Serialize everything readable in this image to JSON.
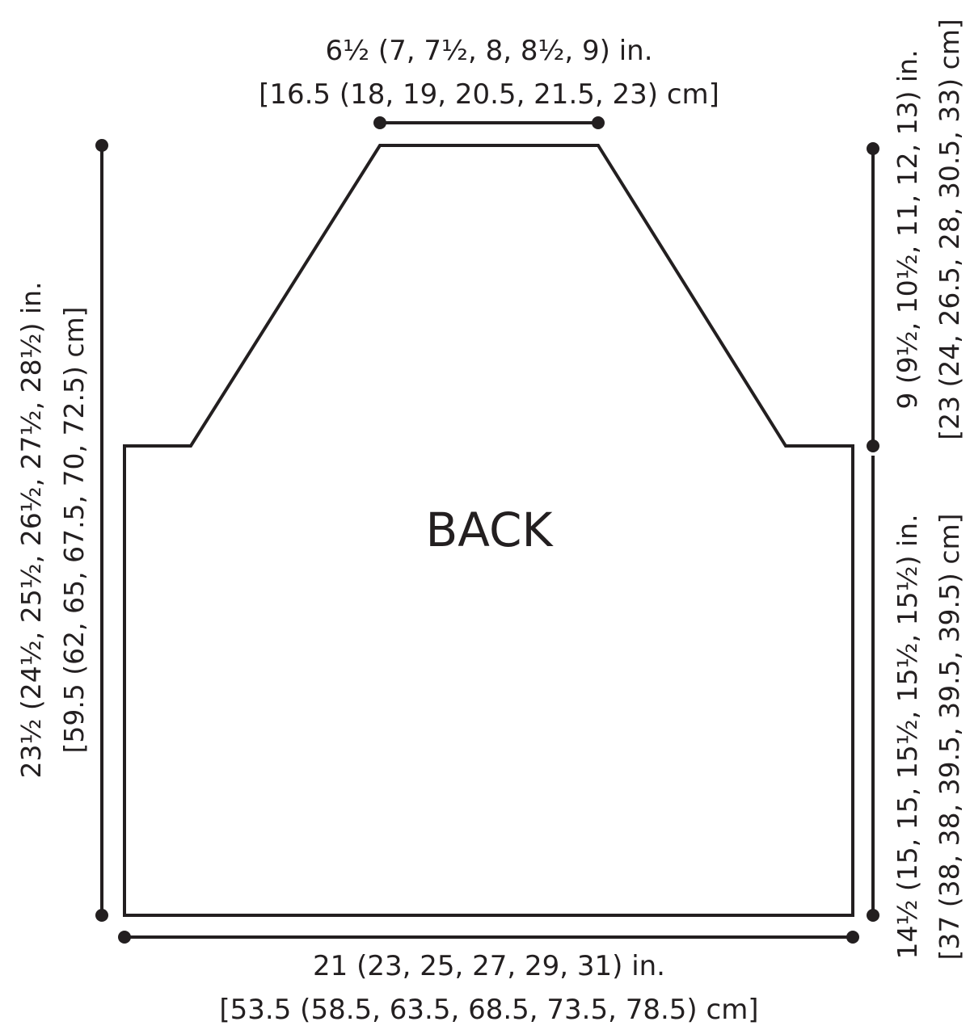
{
  "piece_label": "BACK",
  "colors": {
    "ink": "#231f20",
    "background": "#ffffff"
  },
  "dimensions": {
    "neck_width": {
      "inches": "6½ (7, 7½, 8, 8½, 9) in.",
      "cm": "[16.5 (18, 19, 20.5, 21.5, 23) cm]"
    },
    "total_length": {
      "inches": "23½ (24½, 25½, 26½, 27½, 28½) in.",
      "cm": "[59.5 (62, 65, 67.5, 70, 72.5) cm]"
    },
    "armhole_depth": {
      "inches": "9 (9½, 10½, 11, 12, 13) in.",
      "cm": "[23 (24, 26.5, 28, 30.5, 33) cm]"
    },
    "side_length": {
      "inches": "14½ (15, 15, 15½, 15½, 15½) in.",
      "cm": "[37 (38, 38, 39.5, 39.5, 39.5) cm]"
    },
    "bottom_width": {
      "inches": "21 (23, 25, 27, 29, 31) in.",
      "cm": "[53.5 (58.5, 63.5, 68.5, 73.5, 78.5) cm]"
    }
  }
}
